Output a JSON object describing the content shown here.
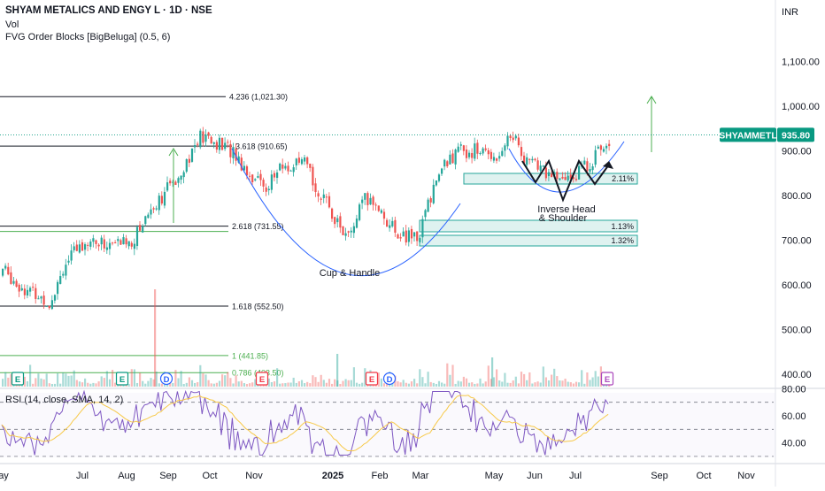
{
  "header": {
    "title": "SHYAM METALICS AND ENGY L · 1D · NSE",
    "volume_label": "Vol",
    "indicator_label": "FVG Order Blocks [BigBeluga] (0.5, 6)",
    "currency": "INR"
  },
  "price_axis": {
    "ticks": [
      {
        "value": 1100,
        "label": "1,100.00"
      },
      {
        "value": 1000,
        "label": "1,000.00"
      },
      {
        "value": 900,
        "label": "900.00"
      },
      {
        "value": 800,
        "label": "800.00"
      },
      {
        "value": 700,
        "label": "700.00"
      },
      {
        "value": 600,
        "label": "600.00"
      },
      {
        "value": 500,
        "label": "500.00"
      },
      {
        "value": 400,
        "label": "400.00"
      }
    ],
    "last_price_label": "935.80",
    "symbol_label": "SHYAMMETL"
  },
  "rsi": {
    "label": "RSI (14, close, SMA, 14, 2)",
    "ticks": [
      {
        "value": 80,
        "label": "80.00"
      },
      {
        "value": 60,
        "label": "60.00"
      },
      {
        "value": 40,
        "label": "40.00"
      }
    ]
  },
  "time_axis": [
    {
      "label": "ay",
      "bold": false
    },
    {
      "label": "Jul",
      "bold": false
    },
    {
      "label": "Aug",
      "bold": false
    },
    {
      "label": "Sep",
      "bold": false
    },
    {
      "label": "Oct",
      "bold": false
    },
    {
      "label": "Nov",
      "bold": false
    },
    {
      "label": "2025",
      "bold": true
    },
    {
      "label": "Feb",
      "bold": false
    },
    {
      "label": "Mar",
      "bold": false
    },
    {
      "label": "May",
      "bold": false
    },
    {
      "label": "Jun",
      "bold": false
    },
    {
      "label": "Jul",
      "bold": false
    },
    {
      "label": "Sep",
      "bold": false
    },
    {
      "label": "Oct",
      "bold": false
    },
    {
      "label": "Nov",
      "bold": false
    }
  ],
  "fib_levels": [
    {
      "label": "4.236 (1,021.30)",
      "price": 1021.3
    },
    {
      "label": "3.618 (910.65)",
      "price": 910.65
    },
    {
      "label": "2.618 (731.55)",
      "price": 731.55
    },
    {
      "label": "1.618 (552.50)",
      "price": 552.5
    },
    {
      "label": "1 (441.85)",
      "price": 441.85
    },
    {
      "label": "0.786 (403.50)",
      "price": 403.5
    }
  ],
  "order_blocks": [
    {
      "label": "2.11%"
    },
    {
      "label": "1.13%"
    },
    {
      "label": "1.32%"
    }
  ],
  "annotations": {
    "cup": "Cup & Handle",
    "ihs_line1": "Inverse Head",
    "ihs_line2": "& Shoulder"
  },
  "events": [
    {
      "letter": "E"
    },
    {
      "letter": "E"
    },
    {
      "letter": "D"
    },
    {
      "letter": "E"
    },
    {
      "letter": "E"
    },
    {
      "letter": "D"
    },
    {
      "letter": "E"
    }
  ],
  "colors": {
    "up": "#26a69a",
    "down": "#ef5350",
    "rsi_line": "#7e57c2",
    "rsi_ma": "#f7c948",
    "cup_line": "#2962ff",
    "fib": "#131722",
    "fib_green": "#4caf50",
    "price_badge": "#089981"
  },
  "chart_data": {
    "type": "candlestick",
    "title": "SHYAM METALICS AND ENGY L · 1D · NSE",
    "x": [
      "Jul",
      "Aug",
      "Sep",
      "Oct",
      "Nov",
      "2025",
      "Feb",
      "Mar",
      "May",
      "Jun",
      "Jul"
    ],
    "close": [
      680,
      720,
      880,
      930,
      830,
      760,
      720,
      800,
      920,
      840,
      935.8
    ],
    "ylim": [
      400,
      1100
    ],
    "last_price": 935.8,
    "rsi_ylim": [
      30,
      80
    ]
  }
}
